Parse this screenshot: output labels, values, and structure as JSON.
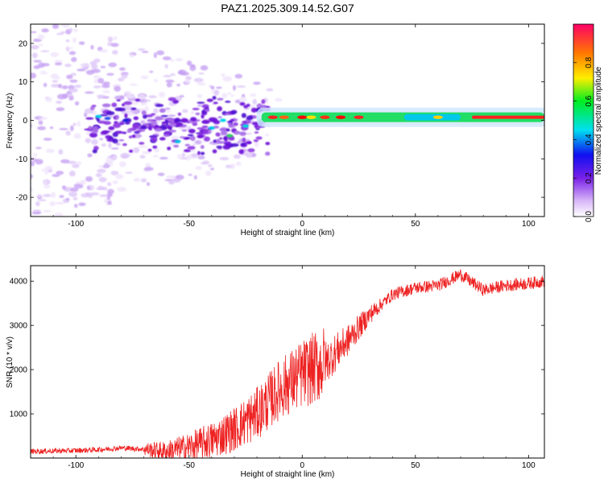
{
  "title": "PAZ1.2025.309.14.52.G07",
  "chart_data": [
    {
      "type": "heatmap",
      "xlabel": "Height of straight line (km)",
      "ylabel": "Frequency (Hz)",
      "xlim": [
        -120,
        107
      ],
      "ylim": [
        -25,
        25
      ],
      "xticks": [
        -100,
        -50,
        0,
        50,
        100
      ],
      "yticks": [
        -20,
        -10,
        0,
        10,
        20
      ],
      "colorbar": {
        "label": "Normalized spectral amplitude",
        "range": [
          0,
          1
        ],
        "ticks": [
          0.0,
          0.2,
          0.4,
          0.6,
          0.8
        ],
        "colormap": "rainbow"
      },
      "description_points": [
        {
          "x": -85,
          "y": 0,
          "v": 0.45
        },
        {
          "x": -60,
          "y": -3,
          "v": 0.35
        },
        {
          "x": -20,
          "y": -1,
          "v": 0.55
        },
        {
          "x": 0,
          "y": 0.8,
          "v": 1.0
        },
        {
          "x": 25,
          "y": 0.8,
          "v": 1.0
        },
        {
          "x": 60,
          "y": 0.8,
          "v": 0.55
        },
        {
          "x": 100,
          "y": 0.8,
          "v": 0.9
        }
      ]
    },
    {
      "type": "line",
      "xlabel": "Height of straight line (km)",
      "ylabel": "SNR (10 * v/v)",
      "xlim": [
        -120,
        107
      ],
      "ylim": [
        0,
        4350
      ],
      "xticks": [
        -100,
        -50,
        0,
        50,
        100
      ],
      "yticks": [
        1000,
        2000,
        3000,
        4000
      ],
      "color": "#ee2222",
      "series": [
        {
          "name": "SNR",
          "x": [
            -120,
            -110,
            -100,
            -90,
            -80,
            -70,
            -60,
            -50,
            -40,
            -30,
            -20,
            -10,
            0,
            10,
            20,
            30,
            40,
            50,
            60,
            70,
            80,
            90,
            100,
            107
          ],
          "values": [
            150,
            160,
            170,
            190,
            230,
            200,
            150,
            250,
            400,
            650,
            1000,
            1550,
            1900,
            2150,
            2650,
            3250,
            3700,
            3850,
            3900,
            4150,
            3800,
            3900,
            3950,
            4000
          ]
        }
      ]
    }
  ]
}
